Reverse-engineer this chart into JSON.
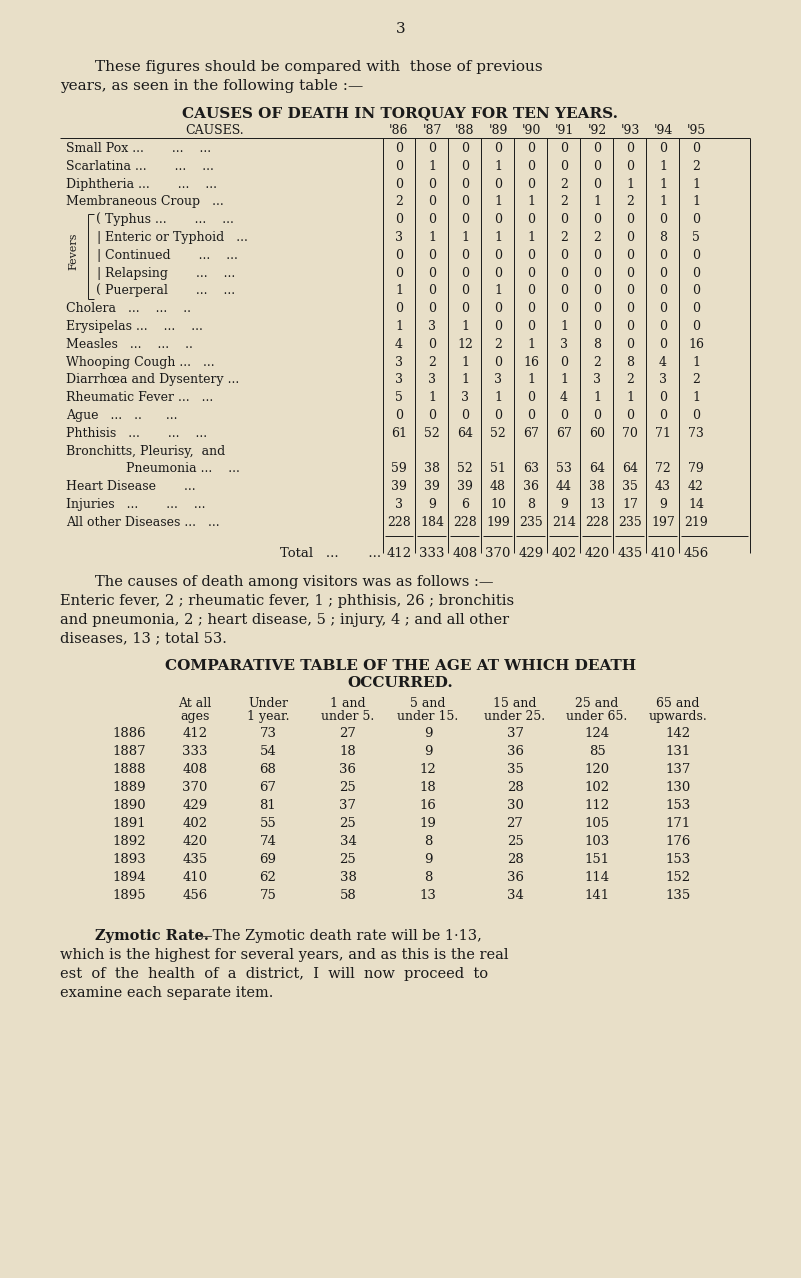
{
  "bg_color": "#e8dfc8",
  "text_color": "#1a1a1a",
  "page_number": "3",
  "intro_line1": "These figures should be compared with  those of previous",
  "intro_line2": "years, as seen in the following table :—",
  "table1_title": "CAUSES OF DEATH IN TORQUAY FOR TEN YEARS.",
  "table1_col_header": "CAUSES.",
  "table1_years": [
    "'86",
    "'87",
    "'88",
    "'89",
    "'90",
    "'91",
    "'92",
    "'93",
    "'94",
    "'95"
  ],
  "table1_rows": [
    {
      "cause": "Small Pox ...       ...    ...",
      "indent": 0,
      "values": [
        0,
        0,
        0,
        0,
        0,
        0,
        0,
        0,
        0,
        0
      ]
    },
    {
      "cause": "Scarlatina ...       ...    ...",
      "indent": 0,
      "values": [
        0,
        1,
        0,
        1,
        0,
        0,
        0,
        0,
        1,
        2
      ]
    },
    {
      "cause": "Diphtheria ...       ...    ...",
      "indent": 0,
      "values": [
        0,
        0,
        0,
        0,
        0,
        2,
        0,
        1,
        1,
        1
      ]
    },
    {
      "cause": "Membraneous Croup   ...",
      "indent": 0,
      "values": [
        2,
        0,
        0,
        1,
        1,
        2,
        1,
        2,
        1,
        1
      ]
    },
    {
      "cause": "Typhus ...       ...    ...",
      "indent": 1,
      "bracket": "top",
      "values": [
        0,
        0,
        0,
        0,
        0,
        0,
        0,
        0,
        0,
        0
      ]
    },
    {
      "cause": "Enteric or Typhoid   ...",
      "indent": 1,
      "values": [
        3,
        1,
        1,
        1,
        1,
        2,
        2,
        0,
        8,
        5
      ]
    },
    {
      "cause": "Continued       ...    ...",
      "indent": 1,
      "values": [
        0,
        0,
        0,
        0,
        0,
        0,
        0,
        0,
        0,
        0
      ]
    },
    {
      "cause": "Relapsing       ...    ...",
      "indent": 1,
      "values": [
        0,
        0,
        0,
        0,
        0,
        0,
        0,
        0,
        0,
        0
      ]
    },
    {
      "cause": "Puerperal       ...    ...",
      "indent": 1,
      "bracket": "bot",
      "values": [
        1,
        0,
        0,
        1,
        0,
        0,
        0,
        0,
        0,
        0
      ]
    },
    {
      "cause": "Cholera   ...    ...    ..",
      "indent": 0,
      "values": [
        0,
        0,
        0,
        0,
        0,
        0,
        0,
        0,
        0,
        0
      ]
    },
    {
      "cause": "Erysipelas ...    ...    ...",
      "indent": 0,
      "values": [
        1,
        3,
        1,
        0,
        0,
        1,
        0,
        0,
        0,
        0
      ]
    },
    {
      "cause": "Measles   ...    ...    ..",
      "indent": 0,
      "values": [
        4,
        0,
        12,
        2,
        1,
        3,
        8,
        0,
        0,
        16
      ]
    },
    {
      "cause": "Whooping Cough ...   ...",
      "indent": 0,
      "values": [
        3,
        2,
        1,
        0,
        16,
        0,
        2,
        8,
        4,
        1
      ]
    },
    {
      "cause": "Diarrhœa and Dysentery ...",
      "indent": 0,
      "values": [
        3,
        3,
        1,
        3,
        1,
        1,
        3,
        2,
        3,
        2
      ]
    },
    {
      "cause": "Rheumatic Fever ...   ...",
      "indent": 0,
      "values": [
        5,
        1,
        3,
        1,
        0,
        4,
        1,
        1,
        0,
        1
      ]
    },
    {
      "cause": "Ague   ...   ..      ...",
      "indent": 0,
      "values": [
        0,
        0,
        0,
        0,
        0,
        0,
        0,
        0,
        0,
        0
      ]
    },
    {
      "cause": "Phthisis   ...       ...    ...",
      "indent": 0,
      "values": [
        61,
        52,
        64,
        52,
        67,
        67,
        60,
        70,
        71,
        73
      ]
    },
    {
      "cause": "Bronchitts, Pleurisy,  and",
      "indent": 0,
      "values": null
    },
    {
      "cause": "    Pneumonia ...    ...",
      "indent": 2,
      "values": [
        59,
        38,
        52,
        51,
        63,
        53,
        64,
        64,
        72,
        79
      ]
    },
    {
      "cause": "Heart Disease       ...",
      "indent": 0,
      "values": [
        39,
        39,
        39,
        48,
        36,
        44,
        38,
        35,
        43,
        42
      ]
    },
    {
      "cause": "Injuries   ...       ...    ...",
      "indent": 0,
      "values": [
        3,
        9,
        6,
        10,
        8,
        9,
        13,
        17,
        9,
        14
      ]
    },
    {
      "cause": "All other Diseases ...   ...",
      "indent": 0,
      "values": [
        228,
        184,
        228,
        199,
        235,
        214,
        228,
        235,
        197,
        219
      ]
    }
  ],
  "table1_total": [
    412,
    333,
    408,
    370,
    429,
    402,
    420,
    435,
    410,
    456
  ],
  "visitors_line1": "The causes of death among visitors was as follows :—",
  "visitors_line2": "Enteric fever, 2 ; rheumatic fever, 1 ; phthisis, 26 ; bronchitis",
  "visitors_line3": "and pneumonia, 2 ; heart disease, 5 ; injury, 4 ; and all other",
  "visitors_line4": "diseases, 13 ; total 53.",
  "table2_title1": "COMPARATIVE TABLE OF THE AGE AT WHICH DEATH",
  "table2_title2": "OCCURRED.",
  "table2_headers1": [
    "At all",
    "Under",
    "1 and",
    "5 and",
    "15 and",
    "25 and",
    "65 and"
  ],
  "table2_headers2": [
    "ages",
    "1 year.",
    "under 5.",
    "under 15.",
    "under 25.",
    "under 65.",
    "upwards."
  ],
  "table2_rows": [
    {
      "year": "1886",
      "values": [
        412,
        73,
        27,
        9,
        37,
        124,
        142
      ]
    },
    {
      "year": "1887",
      "values": [
        333,
        54,
        18,
        9,
        36,
        85,
        131
      ]
    },
    {
      "year": "1888",
      "values": [
        408,
        68,
        36,
        12,
        35,
        120,
        137
      ]
    },
    {
      "year": "1889",
      "values": [
        370,
        67,
        25,
        18,
        28,
        102,
        130
      ]
    },
    {
      "year": "1890",
      "values": [
        429,
        81,
        37,
        16,
        30,
        112,
        153
      ]
    },
    {
      "year": "1891",
      "values": [
        402,
        55,
        25,
        19,
        27,
        105,
        171
      ]
    },
    {
      "year": "1892",
      "values": [
        420,
        74,
        34,
        8,
        25,
        103,
        176
      ]
    },
    {
      "year": "1893",
      "values": [
        435,
        69,
        25,
        9,
        28,
        151,
        153
      ]
    },
    {
      "year": "1894",
      "values": [
        410,
        62,
        38,
        8,
        36,
        114,
        152
      ]
    },
    {
      "year": "1895",
      "values": [
        456,
        75,
        58,
        13,
        34,
        141,
        135
      ]
    }
  ],
  "zymotic_label": "Zymotic Rate.",
  "zymotic_line1": "—The Zymotic death rate will be 1·13,",
  "zymotic_line2": "which is the highest for several years, and as this is the real",
  "zymotic_line3": "est  of  the  health  of  a  district,  I  will  now  proceed  to",
  "zymotic_line4": "examine each separate item."
}
